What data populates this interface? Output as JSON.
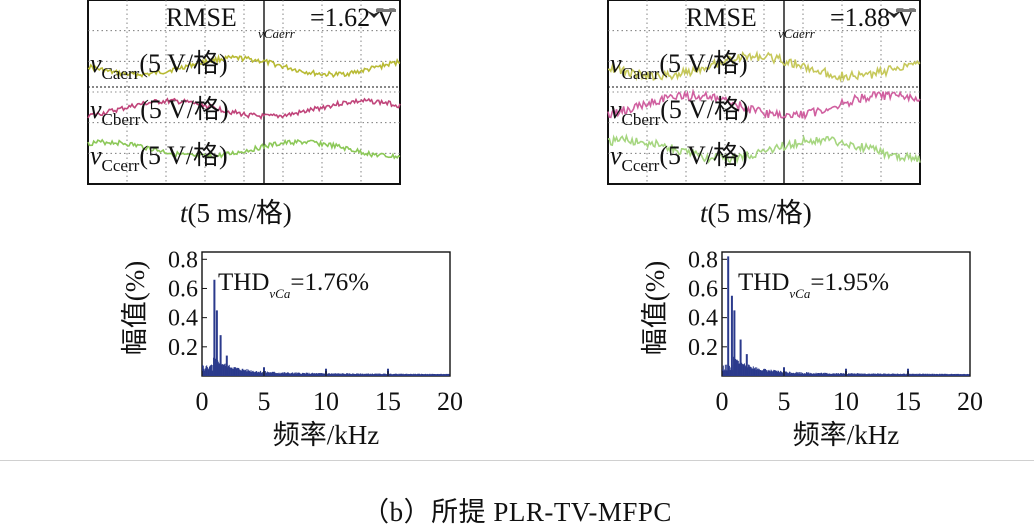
{
  "caption": "（b）所提 PLR-TV-MFPC",
  "chart_data": [
    {
      "type": "line",
      "panel": "left",
      "title": "",
      "scope": {
        "rmse_label": "RMSE",
        "rmse_sub": "vCaerr",
        "rmse_value": "=1.62 V",
        "xlabel": "t(5 ms/格)",
        "colors": [
          "#b8ba34",
          "#c0447a",
          "#8cc858"
        ],
        "series": [
          {
            "name": "vCaerr(5 V/格)",
            "sym": "v",
            "sub": "Caerr",
            "unit": "(5 V/格)",
            "level": 0.38,
            "amplitude": 0.9
          },
          {
            "name": "vCberr(5 V/格)",
            "sym": "v",
            "sub": "Cberr",
            "unit": "(5 V/格)",
            "level": -0.25,
            "amplitude": 0.85
          },
          {
            "name": "vCcerr(5 V/格)",
            "sym": "v",
            "sub": "Ccerr",
            "unit": "(5 V/格)",
            "level": -0.85,
            "amplitude": 0.8
          }
        ]
      },
      "spectrum": {
        "type": "bar",
        "thd_label": "THD",
        "thd_sub": "vCa",
        "thd_value": "=1.76%",
        "xlabel": "频率/kHz",
        "ylabel": "幅值(%)",
        "xticks": [
          "0",
          "5",
          "10",
          "15",
          "20"
        ],
        "yticks": [
          "0.8",
          "0.6",
          "0.4",
          "0.2"
        ],
        "xlim": [
          0,
          20
        ],
        "ylim": [
          0,
          0.85
        ],
        "bar_color": "#2b3a8c",
        "peaks": [
          {
            "x": 1.0,
            "y": 0.66
          },
          {
            "x": 1.2,
            "y": 0.45
          },
          {
            "x": 1.5,
            "y": 0.28
          },
          {
            "x": 2.0,
            "y": 0.14
          },
          {
            "x": 5.0,
            "y": 0.06
          },
          {
            "x": 10.0,
            "y": 0.05
          },
          {
            "x": 15.0,
            "y": 0.05
          }
        ]
      }
    },
    {
      "type": "line",
      "panel": "right",
      "title": "",
      "scope": {
        "rmse_label": "RMSE",
        "rmse_sub": "vCaerr",
        "rmse_value": "=1.88 V",
        "xlabel": "t(5 ms/格)",
        "colors": [
          "#c6c85a",
          "#d060a0",
          "#a6d680"
        ],
        "series": [
          {
            "name": "vCaerr(5 V/格)",
            "sym": "v",
            "sub": "Caerr",
            "unit": "(5 V/格)",
            "level": 0.38,
            "amplitude": 1.1
          },
          {
            "name": "vCberr(5 V/格)",
            "sym": "v",
            "sub": "Cberr",
            "unit": "(5 V/格)",
            "level": -0.2,
            "amplitude": 1.1
          },
          {
            "name": "vCcerr(5 V/格)",
            "sym": "v",
            "sub": "Ccerr",
            "unit": "(5 V/格)",
            "level": -0.85,
            "amplitude": 1.0
          }
        ]
      },
      "spectrum": {
        "type": "bar",
        "thd_label": "THD",
        "thd_sub": "vCa",
        "thd_value": "=1.95%",
        "xlabel": "频率/kHz",
        "ylabel": "幅值(%)",
        "xticks": [
          "0",
          "5",
          "10",
          "15",
          "20"
        ],
        "yticks": [
          "0.8",
          "0.6",
          "0.4",
          "0.2"
        ],
        "xlim": [
          0,
          20
        ],
        "ylim": [
          0,
          0.85
        ],
        "bar_color": "#2b3a8c",
        "peaks": [
          {
            "x": 0.5,
            "y": 0.82
          },
          {
            "x": 0.8,
            "y": 0.55
          },
          {
            "x": 1.0,
            "y": 0.45
          },
          {
            "x": 1.5,
            "y": 0.25
          },
          {
            "x": 2.0,
            "y": 0.15
          },
          {
            "x": 5.0,
            "y": 0.06
          },
          {
            "x": 10.0,
            "y": 0.05
          },
          {
            "x": 15.0,
            "y": 0.05
          }
        ]
      }
    }
  ]
}
